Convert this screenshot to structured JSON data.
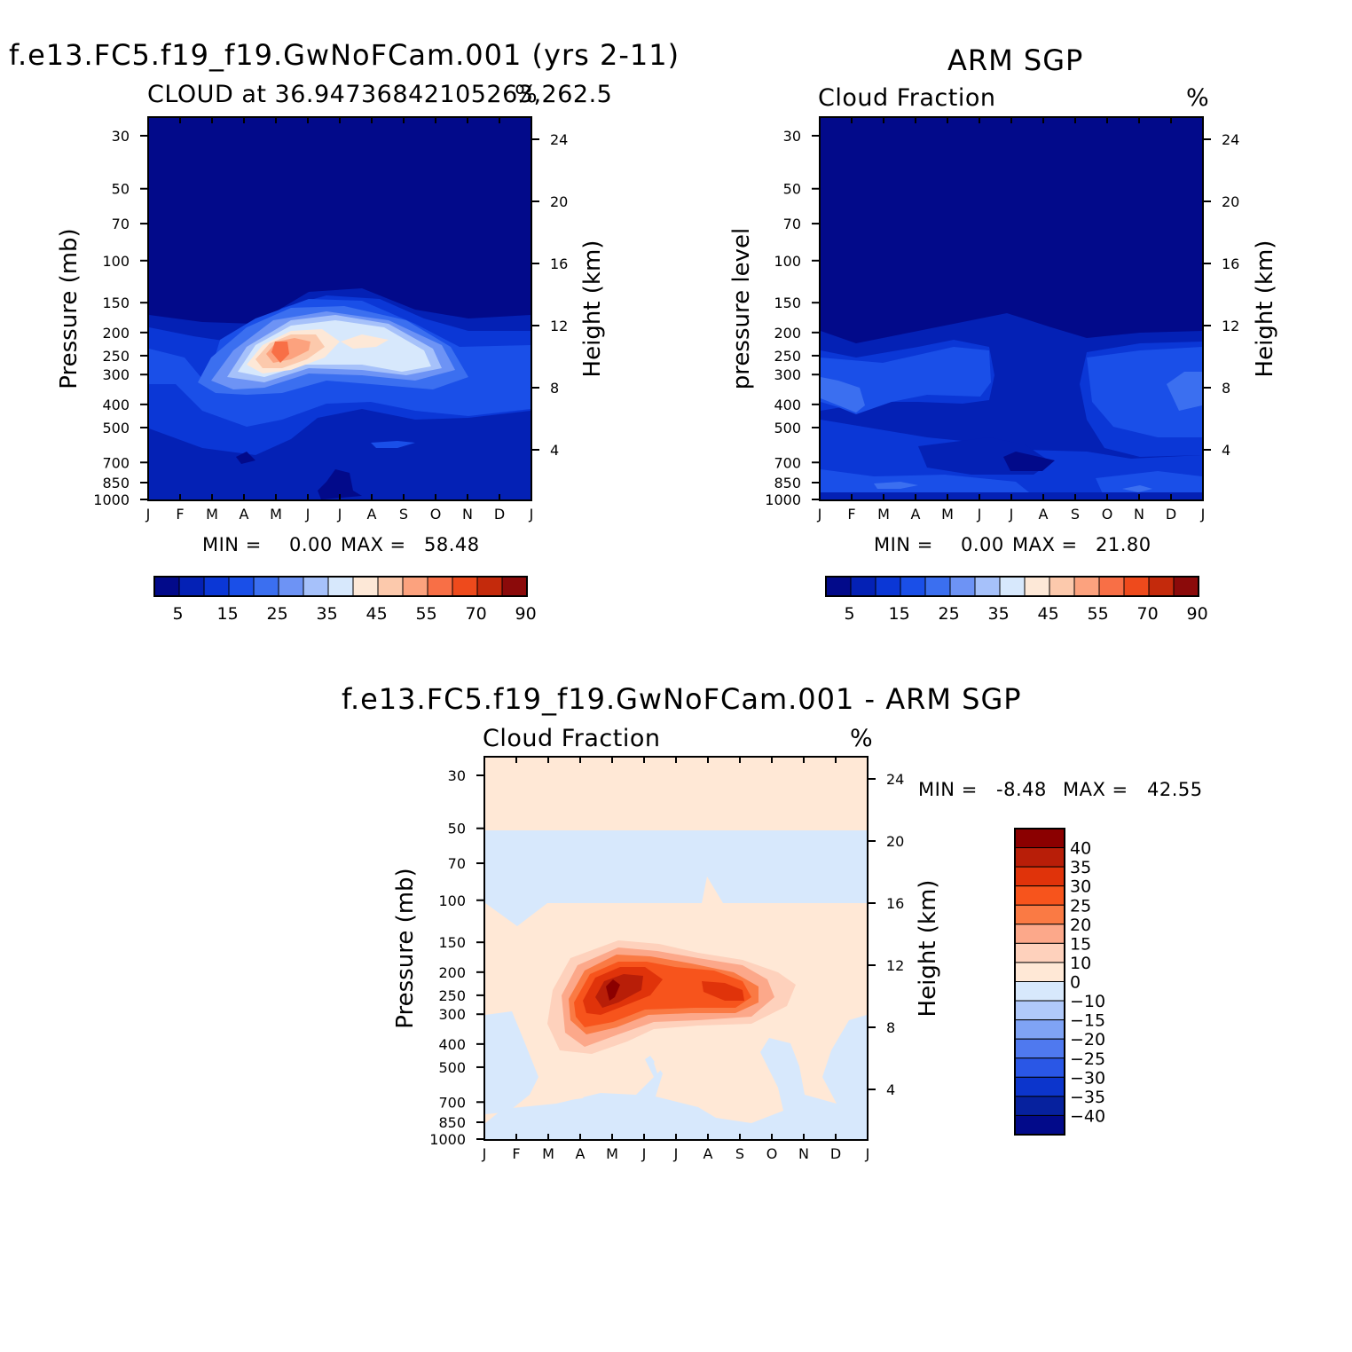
{
  "chart_data": [
    {
      "type": "heatmap",
      "id": "model",
      "title": "f.e13.FC5.f19_f19.GwNoFCam.001 (yrs 2-11)",
      "subtitle_left": "CLOUD at 36.94736842105263,262.5",
      "subtitle_right": "%",
      "ylabel": "Pressure (mb)",
      "ylabel_right": "Height (km)",
      "x_categories": [
        "J",
        "F",
        "M",
        "A",
        "M",
        "J",
        "J",
        "A",
        "S",
        "O",
        "N",
        "D",
        "J"
      ],
      "y_pressure_ticks": [
        30,
        50,
        70,
        100,
        150,
        200,
        250,
        300,
        400,
        500,
        700,
        850,
        1000
      ],
      "y_height_ticks": [
        24,
        20,
        16,
        12,
        8,
        4
      ],
      "min_label": "MIN =",
      "min_value": "0.00",
      "max_label": "MAX =",
      "max_value": "58.48",
      "min": 0.0,
      "max": 58.48,
      "colorbar_orientation": "horizontal",
      "colorbar_labels": [
        "5",
        "15",
        "25",
        "35",
        "45",
        "55",
        "70",
        "90"
      ]
    },
    {
      "type": "heatmap",
      "id": "obs",
      "title": "ARM SGP",
      "subtitle_left": "Cloud Fraction",
      "subtitle_right": "%",
      "ylabel": "pressure level",
      "ylabel_right": "Height (km)",
      "x_categories": [
        "J",
        "F",
        "M",
        "A",
        "M",
        "J",
        "J",
        "A",
        "S",
        "O",
        "N",
        "D",
        "J"
      ],
      "y_pressure_ticks": [
        30,
        50,
        70,
        100,
        150,
        200,
        250,
        300,
        400,
        500,
        700,
        850,
        1000
      ],
      "y_height_ticks": [
        24,
        20,
        16,
        12,
        8,
        4
      ],
      "min_label": "MIN =",
      "min_value": "0.00",
      "max_label": "MAX =",
      "max_value": "21.80",
      "min": 0.0,
      "max": 21.8,
      "colorbar_orientation": "horizontal",
      "colorbar_labels": [
        "5",
        "15",
        "25",
        "35",
        "45",
        "55",
        "70",
        "90"
      ]
    },
    {
      "type": "heatmap",
      "id": "diff",
      "title": "f.e13.FC5.f19_f19.GwNoFCam.001 - ARM SGP",
      "subtitle_left": "Cloud Fraction",
      "subtitle_right": "%",
      "ylabel": "Pressure (mb)",
      "ylabel_right": "Height (km)",
      "x_categories": [
        "J",
        "F",
        "M",
        "A",
        "M",
        "J",
        "J",
        "A",
        "S",
        "O",
        "N",
        "D",
        "J"
      ],
      "y_pressure_ticks": [
        30,
        50,
        70,
        100,
        150,
        200,
        250,
        300,
        400,
        500,
        700,
        850,
        1000
      ],
      "y_height_ticks": [
        24,
        20,
        16,
        12,
        8,
        4
      ],
      "min_label": "MIN =",
      "min_value": "-8.48",
      "max_label": "MAX =",
      "max_value": "42.55",
      "min": -8.48,
      "max": 42.55,
      "colorbar_orientation": "vertical",
      "colorbar_labels": [
        "40",
        "35",
        "30",
        "25",
        "20",
        "15",
        "10",
        "0",
        "−10",
        "−15",
        "−20",
        "−25",
        "−30",
        "−35",
        "−40"
      ]
    }
  ],
  "colors": {
    "abs_scale": [
      "#020a8a",
      "#0421b5",
      "#0b37d6",
      "#1a4fe8",
      "#3b6ff0",
      "#6d93f5",
      "#a6c1fa",
      "#d7e8fc",
      "#fde8d7",
      "#fcc9ac",
      "#fca27e",
      "#f86f46",
      "#ee4a1c",
      "#c42a0c",
      "#8b0a0a"
    ],
    "diff_scale": [
      "#8b0000",
      "#b81e08",
      "#e0330a",
      "#f7541c",
      "#fa7a44",
      "#fca88a",
      "#fed1bc",
      "#ffe8d6",
      "#d7e8fc",
      "#b0c9fa",
      "#7fa3f5",
      "#4f79ef",
      "#2a57e6",
      "#0c35cc",
      "#06219e",
      "#020a8a"
    ]
  }
}
